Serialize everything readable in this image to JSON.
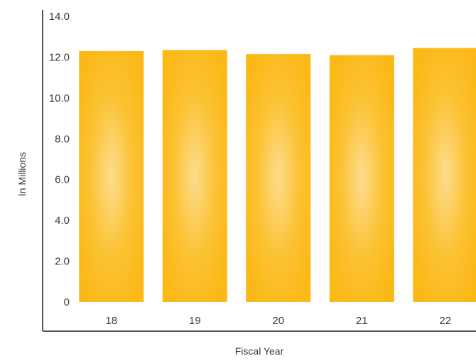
{
  "chart_data": {
    "type": "bar",
    "title": "",
    "xlabel": "Fiscal Year",
    "ylabel": "In Millions",
    "categories": [
      "18",
      "19",
      "20",
      "21",
      "22"
    ],
    "values": [
      12.3,
      12.35,
      12.15,
      12.1,
      12.45
    ],
    "ylim": [
      0,
      14
    ],
    "yticks": [
      0,
      2,
      4,
      6,
      8,
      10,
      12,
      14
    ],
    "ytick_labels": [
      "0",
      "2.0",
      "4.0",
      "6.0",
      "8.0",
      "10.0",
      "12.0",
      "14.0"
    ],
    "grid": false,
    "legend": "none",
    "bar_color": "#FBB817",
    "bar_highlight_color": "#FDDC8E",
    "axis_color": "#222222",
    "text_color": "#3a3a3a"
  }
}
